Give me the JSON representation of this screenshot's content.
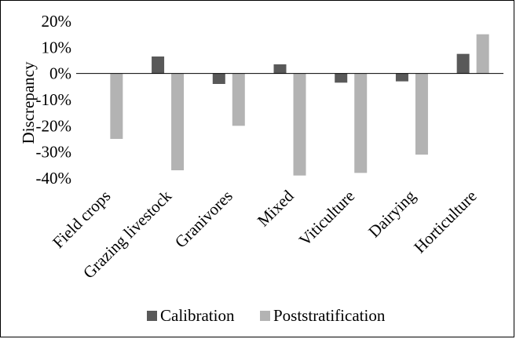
{
  "chart_data": {
    "type": "bar",
    "title": "",
    "xlabel": "",
    "ylabel": "Discrepancy",
    "ylim": [
      -0.4,
      0.2
    ],
    "yticks": [
      0.2,
      0.1,
      0.0,
      -0.1,
      -0.2,
      -0.3,
      -0.4
    ],
    "ytick_labels": [
      "20%",
      "10%",
      "0%",
      "-10%",
      "-20%",
      "-30%",
      "-40%"
    ],
    "categories": [
      "Field crops",
      "Grazing livestock",
      "Granivores",
      "Mixed",
      "Viticulture",
      "Dairying",
      "Horticulture"
    ],
    "series": [
      {
        "name": "Calibration",
        "color": "#595959",
        "values": [
          0.0,
          0.065,
          -0.04,
          0.035,
          -0.035,
          -0.03,
          0.075
        ]
      },
      {
        "name": "Poststratification",
        "color": "#b3b3b3",
        "values": [
          -0.25,
          -0.37,
          -0.2,
          -0.39,
          -0.38,
          -0.31,
          0.15
        ]
      }
    ],
    "grid": false,
    "legend_position": "bottom"
  }
}
